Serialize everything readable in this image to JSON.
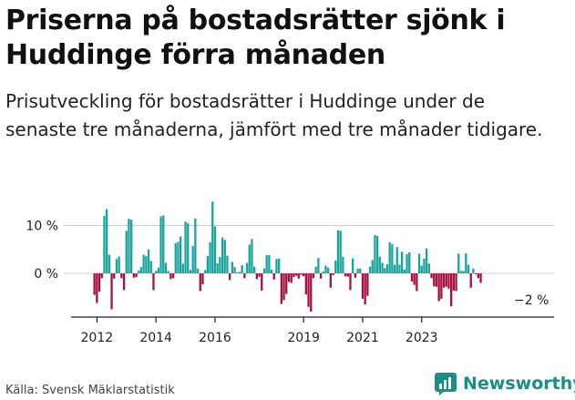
{
  "header": {
    "title": "Priserna på bostadsrätter sjönk i Huddinge förra månaden",
    "subtitle": "Prisutveckling för bostadsrätter i Huddinge under de senaste tre månaderna, jämfört med tre månader tidigare."
  },
  "footer": {
    "source": "Källa: Svensk Mäklarstatistik",
    "brand": "Newsworthy"
  },
  "colors": {
    "positive": "#19a59b",
    "negative": "#a3123f",
    "axis": "#222222",
    "grid": "#cccccc",
    "brand": "#1a8f86"
  },
  "chart_data": {
    "type": "bar",
    "title": "Priserna på bostadsrätter sjönk i Huddinge förra månaden",
    "ylabel": "",
    "xlabel": "",
    "ylim": [
      -9,
      15.5
    ],
    "yticks": [
      {
        "value": 10,
        "label": "10 %"
      },
      {
        "value": 0,
        "label": "0 %"
      }
    ],
    "xticks": [
      {
        "value": 2012,
        "label": "2012"
      },
      {
        "value": 2014,
        "label": "2014"
      },
      {
        "value": 2016,
        "label": "2016"
      },
      {
        "value": 2019,
        "label": "2019"
      },
      {
        "value": 2021,
        "label": "2021"
      },
      {
        "value": 2023,
        "label": "2023"
      }
    ],
    "start": {
      "year": 2011,
      "month": 12
    },
    "end_label": "−2 %",
    "values": [
      -4.5,
      -6.2,
      -3.8,
      -1.0,
      12.0,
      13.4,
      3.9,
      -7.5,
      -1.1,
      3.0,
      3.5,
      -1.0,
      -3.5,
      8.9,
      11.4,
      11.2,
      -0.9,
      -0.8,
      0.6,
      1.3,
      3.9,
      3.6,
      5.0,
      2.6,
      -3.5,
      0.5,
      1.2,
      11.9,
      12.1,
      2.2,
      0.5,
      -1.2,
      -1.0,
      6.3,
      6.6,
      7.7,
      2.0,
      10.8,
      10.5,
      0.7,
      5.7,
      11.5,
      1.0,
      -3.7,
      -2.3,
      0.7,
      3.6,
      6.5,
      15.0,
      9.8,
      2.1,
      3.4,
      7.5,
      7.0,
      3.7,
      -1.4,
      2.4,
      1.3,
      0.2,
      0.3,
      1.7,
      -1.0,
      2.2,
      6.0,
      7.2,
      1.4,
      -1.2,
      -0.7,
      -3.6,
      1.0,
      3.8,
      3.8,
      0.8,
      -1.3,
      3.0,
      3.1,
      -6.4,
      -5.6,
      -4.3,
      -1.8,
      -2.0,
      -0.8,
      -0.5,
      -1.1,
      -0.3,
      -0.6,
      -4.4,
      -7.0,
      -8.0,
      -1.0,
      1.4,
      3.2,
      -1.1,
      0.4,
      1.6,
      1.2,
      -3.0,
      -0.4,
      2.7,
      9.0,
      8.9,
      3.5,
      -0.6,
      -0.7,
      -3.5,
      3.1,
      -0.9,
      1.0,
      1.0,
      -5.3,
      -6.5,
      -4.7,
      1.4,
      2.8,
      8.0,
      7.8,
      3.5,
      2.2,
      1.1,
      1.9,
      6.5,
      6.1,
      1.8,
      5.5,
      1.8,
      4.5,
      0.8,
      4.0,
      4.4,
      -1.7,
      -2.4,
      -3.7,
      4.1,
      1.6,
      3.1,
      5.2,
      2.0,
      -1.0,
      -2.7,
      -2.8,
      -5.8,
      -5.3,
      -3.0,
      -2.8,
      -3.2,
      -6.9,
      -3.6,
      -3.7,
      4.1,
      0.5,
      0.5,
      4.2,
      1.8,
      -3.0,
      1.0,
      -0.2,
      -1.0,
      -2.0
    ]
  }
}
